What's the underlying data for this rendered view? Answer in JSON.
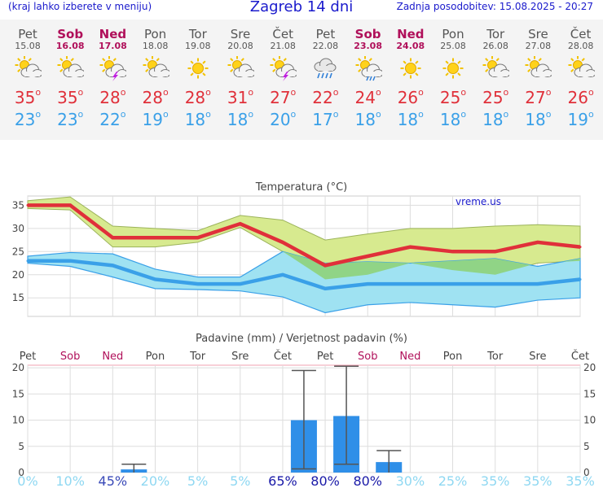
{
  "header": {
    "left": "(kraj lahko izberete v meniju)",
    "title": "Zagreb 14 dni",
    "right": "Zadnja posodobitev: 15.08.2025 - 20:27"
  },
  "days": [
    {
      "day": "Pet",
      "date": "15.08",
      "weekend": false,
      "icon": "sun-cloud-icon",
      "tmax": "35",
      "tmin": "23"
    },
    {
      "day": "Sob",
      "date": "16.08",
      "weekend": true,
      "icon": "sun-cloud-icon",
      "tmax": "35",
      "tmin": "23"
    },
    {
      "day": "Ned",
      "date": "17.08",
      "weekend": true,
      "icon": "sun-cloud-storm-icon",
      "tmax": "28",
      "tmin": "22"
    },
    {
      "day": "Pon",
      "date": "18.08",
      "weekend": false,
      "icon": "sun-cloud-icon",
      "tmax": "28",
      "tmin": "19"
    },
    {
      "day": "Tor",
      "date": "19.08",
      "weekend": false,
      "icon": "sun-icon",
      "tmax": "28",
      "tmin": "18"
    },
    {
      "day": "Sre",
      "date": "20.08",
      "weekend": false,
      "icon": "sun-cloud-icon",
      "tmax": "31",
      "tmin": "18"
    },
    {
      "day": "Čet",
      "date": "21.08",
      "weekend": false,
      "icon": "sun-cloud-storm-icon",
      "tmax": "27",
      "tmin": "20"
    },
    {
      "day": "Pet",
      "date": "22.08",
      "weekend": false,
      "icon": "cloud-rain-icon",
      "tmax": "22",
      "tmin": "17"
    },
    {
      "day": "Sob",
      "date": "23.08",
      "weekend": true,
      "icon": "sun-cloud-rain-icon",
      "tmax": "24",
      "tmin": "18"
    },
    {
      "day": "Ned",
      "date": "24.08",
      "weekend": true,
      "icon": "sun-icon",
      "tmax": "26",
      "tmin": "18"
    },
    {
      "day": "Pon",
      "date": "25.08",
      "weekend": false,
      "icon": "sun-icon",
      "tmax": "25",
      "tmin": "18"
    },
    {
      "day": "Tor",
      "date": "26.08",
      "weekend": false,
      "icon": "sun-cloud-icon",
      "tmax": "25",
      "tmin": "18"
    },
    {
      "day": "Sre",
      "date": "27.08",
      "weekend": false,
      "icon": "sun-cloud-icon",
      "tmax": "27",
      "tmin": "18"
    },
    {
      "day": "Čet",
      "date": "28.08",
      "weekend": false,
      "icon": "sun-cloud-icon",
      "tmax": "26",
      "tmin": "19"
    }
  ],
  "colors": {
    "weekend": "#b0105a",
    "weekday": "#555555",
    "tmax": "#e0303a",
    "tmin": "#3aa0e8",
    "bar": "#2f8fe8",
    "maxBand": "#d7ea8f",
    "minBand": "#9fe2f2",
    "overlap": "#90d486"
  },
  "chart_data": [
    {
      "type": "line",
      "title": "Temperatura (°C)",
      "watermark": "vreme.us",
      "x": [
        "15.08",
        "16.08",
        "17.08",
        "18.08",
        "19.08",
        "20.08",
        "21.08",
        "22.08",
        "23.08",
        "24.08",
        "25.08",
        "26.08",
        "27.08",
        "28.08"
      ],
      "ylim": [
        11,
        37
      ],
      "yticks": [
        15,
        20,
        25,
        30,
        35
      ],
      "grid": true,
      "series": [
        {
          "role": "max",
          "values": [
            35,
            35,
            28,
            28,
            28,
            31,
            27,
            22,
            24,
            26,
            25,
            25,
            27,
            26
          ],
          "band_high": [
            36,
            36.8,
            30.5,
            30,
            29.5,
            32.8,
            31.8,
            27.5,
            28.8,
            30,
            30,
            30.5,
            30.8,
            30.5
          ],
          "band_low": [
            34.3,
            34,
            26,
            26,
            27,
            30.2,
            25,
            19,
            20,
            22.5,
            21,
            20,
            22.5,
            23
          ]
        },
        {
          "role": "min",
          "values": [
            23,
            23,
            22,
            19,
            18,
            18,
            20,
            17,
            18,
            18,
            18,
            18,
            18,
            19
          ],
          "band_high": [
            24,
            24.8,
            24.5,
            21.2,
            19.5,
            19.5,
            25,
            22.5,
            22.8,
            22.5,
            23,
            23.5,
            21.8,
            23.5
          ],
          "band_low": [
            22.5,
            21.8,
            19.5,
            17,
            16.8,
            16.5,
            15.2,
            11.8,
            13.5,
            14,
            13.5,
            13,
            14.5,
            15
          ]
        }
      ]
    },
    {
      "type": "bar",
      "title": "Padavine (mm) / Verjetnost padavin (%)",
      "categories": [
        "Pet",
        "Sob",
        "Ned",
        "Pon",
        "Tor",
        "Sre",
        "Čet",
        "Pet",
        "Sob",
        "Ned",
        "Pon",
        "Tor",
        "Sre",
        "Čet"
      ],
      "values": [
        0,
        0,
        0.6,
        0,
        0,
        0,
        10,
        10.8,
        2,
        0,
        0,
        0,
        0,
        0
      ],
      "range_high": [
        0,
        0,
        1.6,
        0,
        0,
        0,
        19.5,
        20.3,
        4.2,
        0,
        0,
        0,
        0,
        0
      ],
      "range_low": [
        0,
        0,
        0,
        0,
        0,
        0,
        0.7,
        1.6,
        0,
        0,
        0,
        0,
        0,
        0
      ],
      "probability": [
        "0%",
        "10%",
        "45%",
        "20%",
        "5%",
        "5%",
        "65%",
        "80%",
        "80%",
        "30%",
        "25%",
        "35%",
        "35%",
        "35%"
      ],
      "ylim": [
        0,
        20.5
      ],
      "yticks": [
        0,
        5,
        10,
        15,
        20
      ]
    }
  ]
}
